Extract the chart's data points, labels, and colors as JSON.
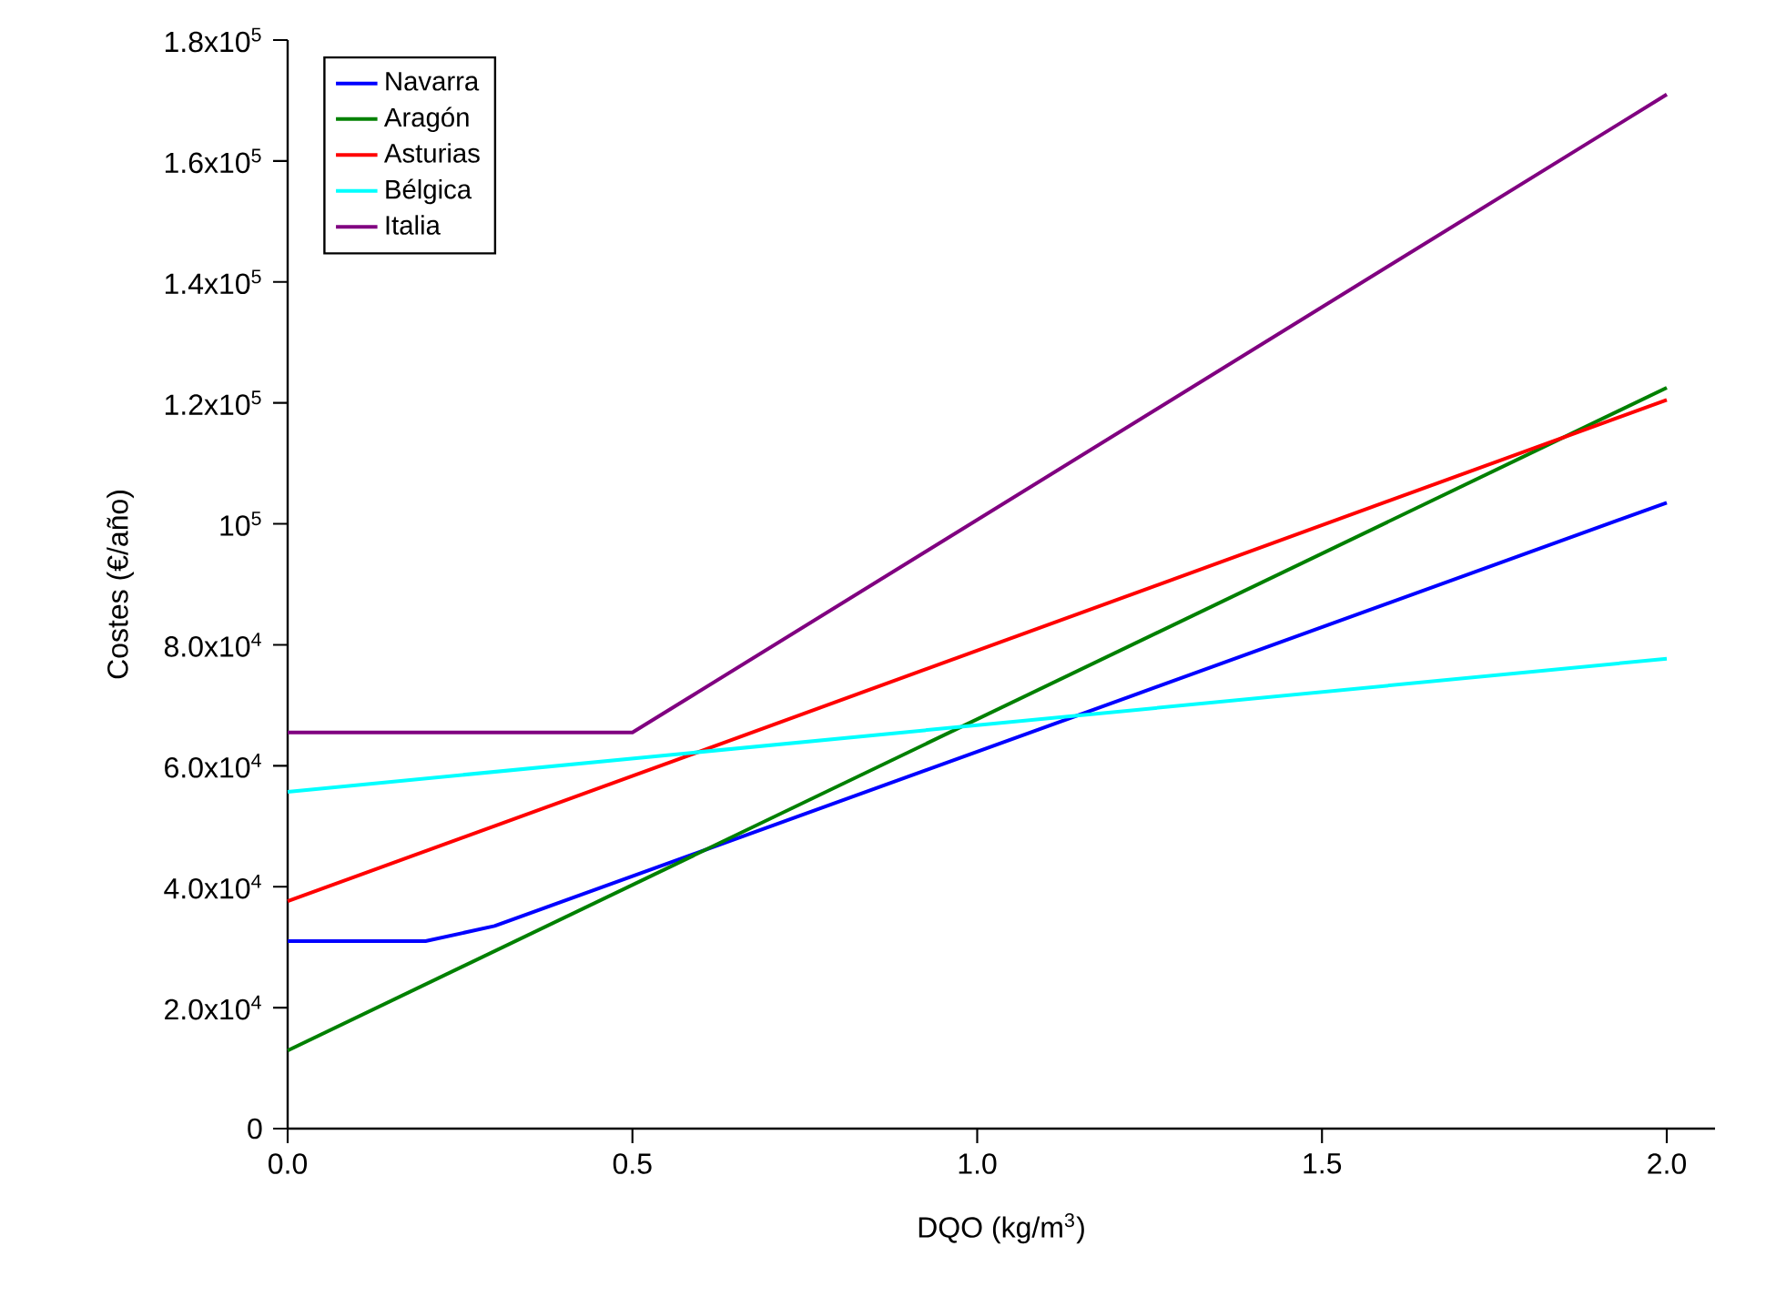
{
  "chart_data": {
    "type": "line",
    "xlabel": "DQO (kg/m$^{3}$)",
    "ylabel": "Costes (€/año)",
    "xlim": [
      0,
      2.07
    ],
    "ylim": [
      0,
      180000
    ],
    "xticks": [
      {
        "value": 0,
        "label": "0.0"
      },
      {
        "value": 0.5,
        "label": "0.5"
      },
      {
        "value": 1,
        "label": "1.0"
      },
      {
        "value": 1.5,
        "label": "1.5"
      },
      {
        "value": 2,
        "label": "2.0"
      }
    ],
    "yticks": [
      0,
      {
        "value": 20000,
        "label": "2.0x10$^{4}$"
      },
      {
        "value": 40000,
        "label": "4.0x10$^{4}$"
      },
      {
        "value": 60000,
        "label": "6.0x10$^{4}$"
      },
      {
        "value": 80000,
        "label": "8.0x10$^{4}$"
      },
      {
        "value": 100000,
        "label": "10$^{5}$"
      },
      {
        "value": 120000,
        "label": "1.2x10$^{5}$"
      },
      {
        "value": 140000,
        "label": "1.4x10$^{5}$"
      },
      {
        "value": 160000,
        "label": "1.6x10$^{5}$"
      },
      {
        "value": 180000,
        "label": "1.8x10$^{5}$"
      }
    ],
    "legend": "top left",
    "marker": "none",
    "line_style": "solid",
    "series": [
      {
        "name": "Navarra",
        "color": "#0000ff",
        "x": [
          0,
          0.2,
          0.3,
          2.0
        ],
        "values": [
          31000,
          31000,
          33500,
          103500
        ]
      },
      {
        "name": "Aragón",
        "color": "#008000",
        "x": [
          0,
          2.0
        ],
        "values": [
          12900,
          122500
        ]
      },
      {
        "name": "Asturias",
        "color": "#ff0000",
        "x": [
          0,
          2.0
        ],
        "values": [
          37600,
          120500
        ]
      },
      {
        "name": "Bélgica",
        "color": "#00ffff",
        "x": [
          0,
          2.0
        ],
        "values": [
          55700,
          77700
        ]
      },
      {
        "name": "Italia",
        "color": "#800080",
        "x": [
          0,
          0.5,
          2.0
        ],
        "values": [
          65500,
          65500,
          171000
        ]
      }
    ]
  }
}
